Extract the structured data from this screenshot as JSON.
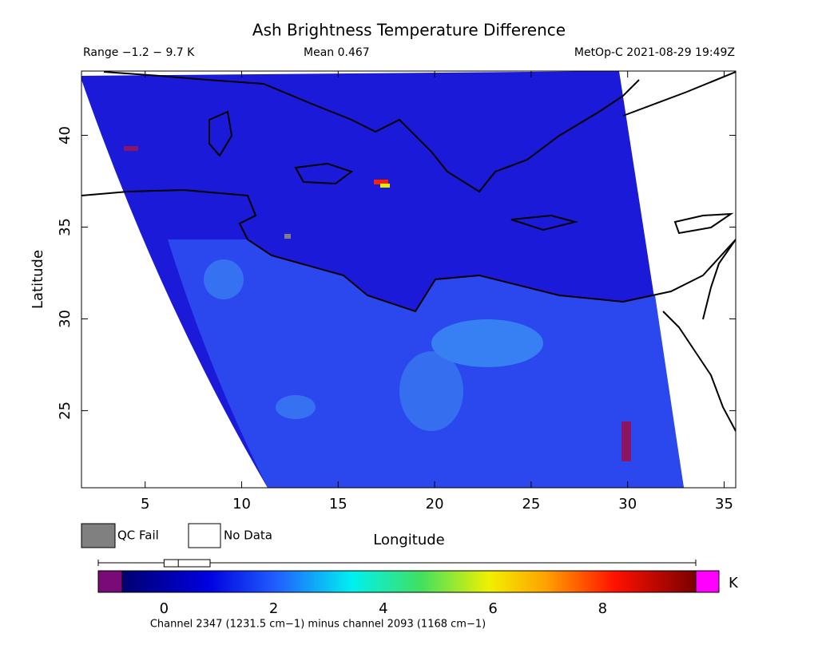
{
  "map": {
    "title": "Ash Brightness Temperature Difference",
    "range_label": "Range −1.2 − 9.7 K",
    "mean_label": "Mean 0.467",
    "source_label": "MetOp-C 2021-08-29 19:49Z",
    "xlabel": "Longitude",
    "ylabel": "Latitude",
    "xlim": [
      1.7,
      35.6
    ],
    "ylim": [
      20.8,
      43.5
    ],
    "xticks": [
      5,
      10,
      15,
      20,
      25,
      30,
      35
    ],
    "yticks": [
      25,
      30,
      35,
      40
    ],
    "legend": [
      "QC Fail",
      "No Data"
    ],
    "colorbar": {
      "clim": [
        -1.2,
        9.7
      ],
      "ticks": [
        0,
        2,
        4,
        6,
        8
      ],
      "unit": "K",
      "boxplot": {
        "whiskers": [
          -1.2,
          9.7
        ],
        "q1": 0,
        "median": 0.26,
        "q3": 0.84
      }
    },
    "footnote": "Channel 2347 (1231.5 cm−1) minus channel 2093 (1168 cm−1)"
  }
}
